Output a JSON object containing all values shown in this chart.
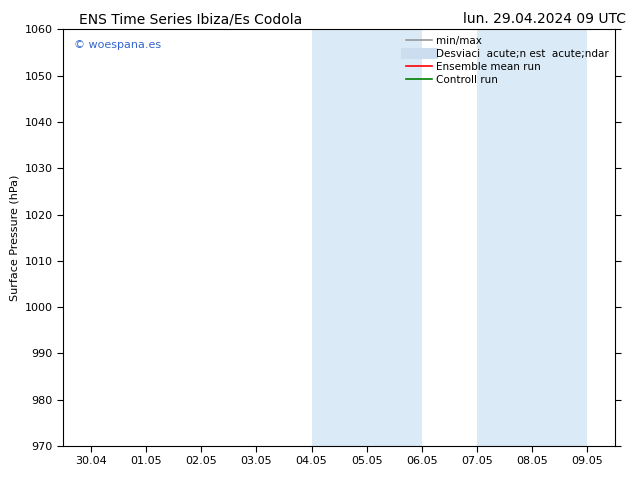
{
  "title_left": "ENS Time Series Ibiza/Es Codola",
  "title_right": "lun. 29.04.2024 09 UTC",
  "ylabel": "Surface Pressure (hPa)",
  "ylim": [
    970,
    1060
  ],
  "yticks": [
    970,
    980,
    990,
    1000,
    1010,
    1020,
    1030,
    1040,
    1050,
    1060
  ],
  "xtick_labels": [
    "30.04",
    "01.05",
    "02.05",
    "03.05",
    "04.05",
    "05.05",
    "06.05",
    "07.05",
    "08.05",
    "09.05"
  ],
  "xtick_positions": [
    0,
    1,
    2,
    3,
    4,
    5,
    6,
    7,
    8,
    9
  ],
  "xlim": [
    -0.5,
    9.5
  ],
  "shaded_bands": [
    {
      "x_start": 4,
      "x_end": 6
    },
    {
      "x_start": 7,
      "x_end": 9
    }
  ],
  "shade_color": "#daeaf6",
  "watermark_text": "© woespana.es",
  "watermark_color": "#3366cc",
  "legend_labels": [
    "min/max",
    "Desviaci  acute;n est  acute;ndar",
    "Ensemble mean run",
    "Controll run"
  ],
  "legend_colors": [
    "#999999",
    "#ccddf0",
    "red",
    "green"
  ],
  "legend_lws": [
    1.2,
    8,
    1.2,
    1.2
  ],
  "bg_color": "#ffffff",
  "plot_bg_color": "#ffffff",
  "spine_color": "#000000",
  "tick_color": "#000000",
  "title_fontsize": 10,
  "tick_fontsize": 8,
  "ylabel_fontsize": 8,
  "legend_fontsize": 7.5,
  "watermark_fontsize": 8
}
